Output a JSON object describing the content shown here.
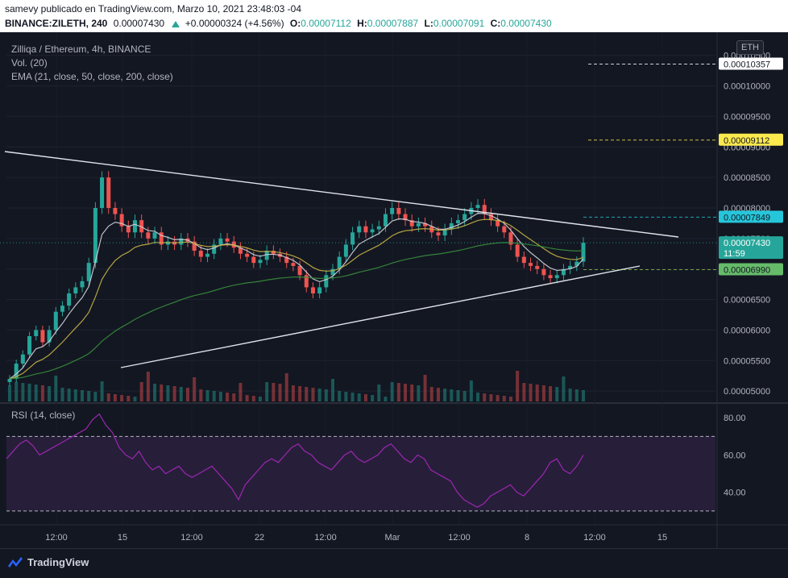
{
  "header": {
    "line1": "samevy publicado en TradingView.com, Marzo 10, 2021 23:48:03 -04",
    "symbol": "BINANCE:ZILETH, 240",
    "last": "0.00007430",
    "change": "+0.00000324 (+4.56%)",
    "o_label": "O:",
    "o": "0.00007112",
    "h_label": "H:",
    "h": "0.00007887",
    "l_label": "L:",
    "l": "0.00007091",
    "c_label": "C:",
    "c": "0.00007430"
  },
  "legend": {
    "title": "Zilliqa / Ethereum, 4h, BINANCE",
    "vol": "Vol. (20)",
    "ema": "EMA (21, close, 50, close, 200, close)",
    "rsi": "RSI (14, close)"
  },
  "currency": "ETH",
  "footer": {
    "brand": "TradingView"
  },
  "colors": {
    "up": "#26a69a",
    "down": "#ef5350",
    "rsi": "#9c27b0",
    "ema21": "#d1d4dc",
    "ema50": "#c8b445",
    "ema200": "#388e3c",
    "bg": "#131722"
  },
  "chart_data": [
    {
      "type": "candlestick",
      "title": "Zilliqa / Ethereum, 4h, BINANCE",
      "y_ticks": [
        "0.00010500",
        "0.00010000",
        "0.00009500",
        "0.00009000",
        "0.00008500",
        "0.00008000",
        "0.00007500",
        "0.00007000",
        "0.00006500",
        "0.00006000",
        "0.00005500",
        "0.00005000"
      ],
      "ylim": [
        4.83e-05,
        0.000108
      ],
      "x_ticks": [
        "12:00",
        "15",
        "12:00",
        "22",
        "12:00",
        "Mar",
        "12:00",
        "8",
        "12:00",
        "15"
      ],
      "price_labels": [
        {
          "value": "0.00010357",
          "style": "white"
        },
        {
          "value": "0.00009112",
          "style": "yellow"
        },
        {
          "value": "0.00007849",
          "style": "cyan"
        },
        {
          "value": "0.00007430",
          "style": "green",
          "sub": "11:59"
        },
        {
          "value": "0.00006990",
          "style": "lightgreen"
        }
      ],
      "close_series_approx": [
        5.2e-05,
        5.45e-05,
        5.6e-05,
        5.9e-05,
        6e-05,
        5.8e-05,
        6e-05,
        6.3e-05,
        6.4e-05,
        6.6e-05,
        6.7e-05,
        6.8e-05,
        7.1e-05,
        8e-05,
        8.5e-05,
        8e-05,
        7.9e-05,
        7.7e-05,
        7.6e-05,
        7.8e-05,
        7.6e-05,
        7.5e-05,
        7.6e-05,
        7.4e-05,
        7.45e-05,
        7.4e-05,
        7.5e-05,
        7.45e-05,
        7.3e-05,
        7.2e-05,
        7.25e-05,
        7.4e-05,
        7.5e-05,
        7.45e-05,
        7.35e-05,
        7.25e-05,
        7.2e-05,
        7.1e-05,
        7.15e-05,
        7.3e-05,
        7.25e-05,
        7.2e-05,
        7.1e-05,
        7.05e-05,
        6.9e-05,
        6.7e-05,
        6.6e-05,
        6.7e-05,
        6.9e-05,
        7e-05,
        7.2e-05,
        7.4e-05,
        7.6e-05,
        7.7e-05,
        7.6e-05,
        7.65e-05,
        7.7e-05,
        7.9e-05,
        8e-05,
        7.9e-05,
        7.8e-05,
        7.7e-05,
        7.75e-05,
        7.7e-05,
        7.6e-05,
        7.55e-05,
        7.65e-05,
        7.75e-05,
        7.8e-05,
        7.9e-05,
        8e-05,
        8.05e-05,
        7.9e-05,
        7.8e-05,
        7.7e-05,
        7.6e-05,
        7.4e-05,
        7.2e-05,
        7.1e-05,
        7.05e-05,
        7e-05,
        6.9e-05,
        6.85e-05,
        6.9e-05,
        7e-05,
        7.05e-05,
        7.12e-05,
        7.43e-05
      ]
    },
    {
      "type": "line",
      "title": "RSI (14, close)",
      "y_ticks": [
        "80.00",
        "60.00",
        "40.00"
      ],
      "ylim": [
        23,
        87
      ],
      "bands": [
        70,
        30
      ],
      "values": [
        58,
        62,
        66,
        68,
        65,
        60,
        62,
        64,
        66,
        68,
        70,
        72,
        74,
        79,
        82,
        76,
        72,
        64,
        60,
        58,
        62,
        56,
        52,
        54,
        50,
        52,
        54,
        50,
        48,
        50,
        52,
        54,
        50,
        46,
        42,
        36,
        44,
        48,
        52,
        56,
        58,
        56,
        60,
        64,
        66,
        62,
        60,
        56,
        54,
        52,
        56,
        60,
        62,
        58,
        56,
        58,
        60,
        64,
        66,
        62,
        58,
        56,
        60,
        58,
        52,
        50,
        48,
        46,
        40,
        36,
        34,
        32,
        34,
        38,
        40,
        42,
        44,
        40,
        38,
        42,
        46,
        50,
        56,
        58,
        52,
        50,
        54,
        60
      ]
    }
  ]
}
